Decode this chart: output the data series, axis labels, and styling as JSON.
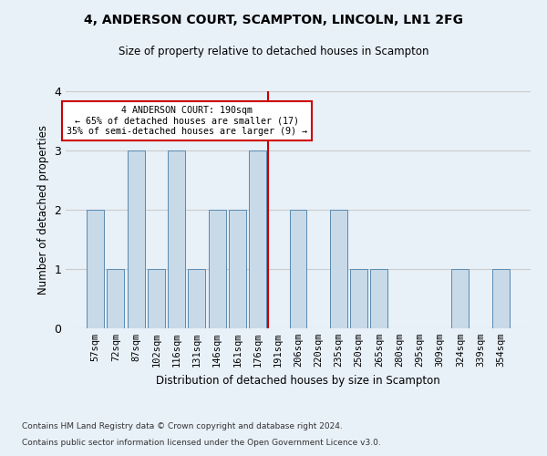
{
  "title": "4, ANDERSON COURT, SCAMPTON, LINCOLN, LN1 2FG",
  "subtitle": "Size of property relative to detached houses in Scampton",
  "xlabel": "Distribution of detached houses by size in Scampton",
  "ylabel": "Number of detached properties",
  "bar_labels": [
    "57sqm",
    "72sqm",
    "87sqm",
    "102sqm",
    "116sqm",
    "131sqm",
    "146sqm",
    "161sqm",
    "176sqm",
    "191sqm",
    "206sqm",
    "220sqm",
    "235sqm",
    "250sqm",
    "265sqm",
    "280sqm",
    "295sqm",
    "309sqm",
    "324sqm",
    "339sqm",
    "354sqm"
  ],
  "bar_values": [
    2,
    1,
    3,
    1,
    3,
    1,
    2,
    2,
    3,
    0,
    2,
    0,
    2,
    1,
    1,
    0,
    0,
    0,
    1,
    0,
    1
  ],
  "bar_color": "#c8d9e8",
  "bar_edge_color": "#5a8ab0",
  "vline_color": "#cc0000",
  "annotation_title": "4 ANDERSON COURT: 190sqm",
  "annotation_line1": "← 65% of detached houses are smaller (17)",
  "annotation_line2": "35% of semi-detached houses are larger (9) →",
  "annotation_box_color": "#cc0000",
  "ylim": [
    0,
    4
  ],
  "yticks": [
    0,
    1,
    2,
    3,
    4
  ],
  "footnote1": "Contains HM Land Registry data © Crown copyright and database right 2024.",
  "footnote2": "Contains public sector information licensed under the Open Government Licence v3.0.",
  "background_color": "#e8f0f8",
  "grid_color": "#cccccc"
}
